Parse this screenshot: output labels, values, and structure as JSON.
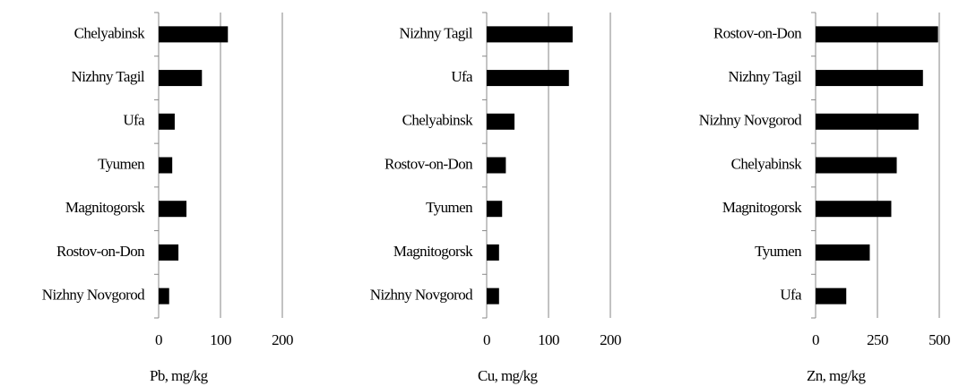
{
  "chart_data": [
    {
      "type": "bar",
      "orientation": "horizontal",
      "categories": [
        "Chelyabinsk",
        "Nizhny Tagil",
        "Ufa",
        "Tyumen",
        "Magnitogorsk",
        "Rostov-on-Don",
        "Nizhny Novgorod"
      ],
      "values": [
        112,
        70,
        26,
        22,
        45,
        32,
        17
      ],
      "color": "#000000",
      "xlim": [
        0,
        200
      ],
      "xticks": [
        0,
        100,
        200
      ],
      "xlabel": "Pb, mg/kg",
      "grid": true
    },
    {
      "type": "bar",
      "orientation": "horizontal",
      "categories": [
        "Nizhny Tagil",
        "Ufa",
        "Chelyabinsk",
        "Rostov-on-Don",
        "Tyumen",
        "Magnitogorsk",
        "Nizhny Novgorod"
      ],
      "values": [
        139,
        133,
        45,
        31,
        25,
        20,
        20
      ],
      "color": "#000000",
      "xlim": [
        0,
        200
      ],
      "xticks": [
        0,
        100,
        200
      ],
      "xlabel": "Cu, mg/kg",
      "grid": true
    },
    {
      "type": "bar",
      "orientation": "horizontal",
      "categories": [
        "Rostov-on-Don",
        "Nizhny Tagil",
        "Nizhny Novgorod",
        "Chelyabinsk",
        "Magnitogorsk",
        "Tyumen",
        "Ufa"
      ],
      "values": [
        495,
        434,
        416,
        328,
        306,
        219,
        124
      ],
      "color": "#000000",
      "xlim": [
        0,
        500
      ],
      "xticks": [
        0,
        250,
        500
      ],
      "xlabel": "Zn, mg/kg",
      "grid": true
    }
  ]
}
